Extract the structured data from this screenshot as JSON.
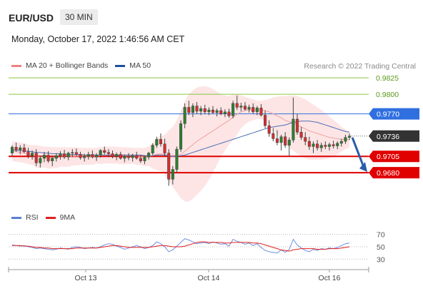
{
  "header": {
    "symbol": "EUR/USD",
    "timeframe": "30 MIN",
    "datetime": "Monday, October 17, 2022 1:46:56 AM CET",
    "credit": "Research © 2022 Trading Central"
  },
  "legend_main": [
    {
      "label": "MA 20 + Bollinger Bands",
      "color": "#f08080"
    },
    {
      "label": "MA 50",
      "color": "#1f4e9c"
    }
  ],
  "legend_rsi": [
    {
      "label": "RSI",
      "color": "#5b7fd6"
    },
    {
      "label": "9MA",
      "color": "#e02020"
    }
  ],
  "chart_data": {
    "type": "candlestick",
    "x_tick_labels": [
      "Oct 13",
      "Oct 14",
      "Oct 16"
    ],
    "price_range": [
      0.963,
      0.9835
    ],
    "levels": [
      {
        "value": 0.9825,
        "label": "0.9825",
        "color": "#8cc63f",
        "kind": "resistance"
      },
      {
        "value": 0.98,
        "label": "0.9800",
        "color": "#8cc63f",
        "kind": "resistance"
      },
      {
        "value": 0.977,
        "label": "0.9770",
        "color": "#2f6fe0",
        "kind": "pivot"
      },
      {
        "value": 0.9705,
        "label": "0.9705",
        "color": "#e00000",
        "kind": "support"
      },
      {
        "value": 0.968,
        "label": "0.9680",
        "color": "#e00000",
        "kind": "support"
      }
    ],
    "last_price": {
      "value": 0.9736,
      "label": "0.9736",
      "color": "#333333"
    },
    "projection": {
      "from": 0.9736,
      "to": 0.968
    },
    "candles": [
      [
        0.971,
        0.9722,
        0.9705,
        0.9719
      ],
      [
        0.9719,
        0.9726,
        0.9712,
        0.9715
      ],
      [
        0.9715,
        0.9722,
        0.9708,
        0.9718
      ],
      [
        0.9718,
        0.9724,
        0.971,
        0.9712
      ],
      [
        0.9712,
        0.9718,
        0.9702,
        0.9706
      ],
      [
        0.9706,
        0.9714,
        0.97,
        0.971
      ],
      [
        0.971,
        0.9716,
        0.969,
        0.9695
      ],
      [
        0.9695,
        0.9706,
        0.9688,
        0.9702
      ],
      [
        0.9702,
        0.9712,
        0.9696,
        0.9707
      ],
      [
        0.9707,
        0.9713,
        0.9695,
        0.9698
      ],
      [
        0.9698,
        0.9706,
        0.969,
        0.9702
      ],
      [
        0.9702,
        0.971,
        0.9697,
        0.9706
      ],
      [
        0.9706,
        0.9713,
        0.97,
        0.9709
      ],
      [
        0.9709,
        0.9715,
        0.9701,
        0.9704
      ],
      [
        0.9704,
        0.9712,
        0.9699,
        0.971
      ],
      [
        0.971,
        0.9716,
        0.9704,
        0.9711
      ],
      [
        0.9711,
        0.9717,
        0.9705,
        0.9708
      ],
      [
        0.9708,
        0.9712,
        0.97,
        0.9703
      ],
      [
        0.9703,
        0.9709,
        0.9697,
        0.9705
      ],
      [
        0.9705,
        0.9712,
        0.97,
        0.9708
      ],
      [
        0.9708,
        0.9714,
        0.9702,
        0.9704
      ],
      [
        0.9704,
        0.971,
        0.9698,
        0.9707
      ],
      [
        0.9707,
        0.9716,
        0.9703,
        0.9714
      ],
      [
        0.9714,
        0.972,
        0.9708,
        0.9711
      ],
      [
        0.9711,
        0.9716,
        0.9704,
        0.9709
      ],
      [
        0.9709,
        0.9714,
        0.9702,
        0.9705
      ],
      [
        0.9705,
        0.9711,
        0.9699,
        0.9708
      ],
      [
        0.9708,
        0.9712,
        0.97,
        0.9702
      ],
      [
        0.9702,
        0.9708,
        0.9696,
        0.9705
      ],
      [
        0.9705,
        0.971,
        0.9699,
        0.9703
      ],
      [
        0.9703,
        0.9709,
        0.9697,
        0.9706
      ],
      [
        0.9706,
        0.9712,
        0.97,
        0.9702
      ],
      [
        0.9702,
        0.9707,
        0.9695,
        0.9698
      ],
      [
        0.9698,
        0.9706,
        0.9693,
        0.9704
      ],
      [
        0.9704,
        0.9712,
        0.97,
        0.971
      ],
      [
        0.971,
        0.9725,
        0.9707,
        0.9722
      ],
      [
        0.9722,
        0.9735,
        0.9718,
        0.9731
      ],
      [
        0.9731,
        0.974,
        0.972,
        0.9724
      ],
      [
        0.9724,
        0.9732,
        0.9705,
        0.971
      ],
      [
        0.971,
        0.9716,
        0.966,
        0.967
      ],
      [
        0.967,
        0.969,
        0.9662,
        0.9685
      ],
      [
        0.9685,
        0.972,
        0.968,
        0.9716
      ],
      [
        0.9716,
        0.976,
        0.9712,
        0.9755
      ],
      [
        0.9755,
        0.9786,
        0.9748,
        0.978
      ],
      [
        0.978,
        0.979,
        0.9768,
        0.9772
      ],
      [
        0.9772,
        0.9786,
        0.9765,
        0.9782
      ],
      [
        0.9782,
        0.9788,
        0.977,
        0.9774
      ],
      [
        0.9774,
        0.9782,
        0.9768,
        0.9778
      ],
      [
        0.9778,
        0.9784,
        0.977,
        0.9773
      ],
      [
        0.9773,
        0.978,
        0.9768,
        0.9776
      ],
      [
        0.9776,
        0.9782,
        0.977,
        0.9772
      ],
      [
        0.9772,
        0.9778,
        0.9766,
        0.9775
      ],
      [
        0.9775,
        0.978,
        0.9768,
        0.977
      ],
      [
        0.977,
        0.9777,
        0.9765,
        0.9773
      ],
      [
        0.9773,
        0.9778,
        0.9764,
        0.9767
      ],
      [
        0.9767,
        0.979,
        0.9763,
        0.9786
      ],
      [
        0.9786,
        0.9798,
        0.9776,
        0.978
      ],
      [
        0.978,
        0.9787,
        0.9774,
        0.9782
      ],
      [
        0.9782,
        0.9788,
        0.9775,
        0.9777
      ],
      [
        0.9777,
        0.9784,
        0.9772,
        0.978
      ],
      [
        0.978,
        0.9786,
        0.977,
        0.9773
      ],
      [
        0.9773,
        0.9782,
        0.9768,
        0.9779
      ],
      [
        0.9779,
        0.9785,
        0.9766,
        0.9768
      ],
      [
        0.9768,
        0.9775,
        0.9748,
        0.9752
      ],
      [
        0.9752,
        0.976,
        0.9735,
        0.974
      ],
      [
        0.974,
        0.9748,
        0.9728,
        0.9732
      ],
      [
        0.9732,
        0.9745,
        0.9722,
        0.9726
      ],
      [
        0.9726,
        0.9738,
        0.9714,
        0.9735
      ],
      [
        0.9735,
        0.9742,
        0.9718,
        0.9722
      ],
      [
        0.9722,
        0.9734,
        0.9706,
        0.973
      ],
      [
        0.973,
        0.9795,
        0.9726,
        0.9762
      ],
      [
        0.9762,
        0.977,
        0.9738,
        0.9742
      ],
      [
        0.9742,
        0.975,
        0.973,
        0.9734
      ],
      [
        0.9734,
        0.9742,
        0.9722,
        0.9728
      ],
      [
        0.9728,
        0.9735,
        0.9715,
        0.972
      ],
      [
        0.972,
        0.9728,
        0.971,
        0.9724
      ],
      [
        0.9724,
        0.973,
        0.9714,
        0.9718
      ],
      [
        0.9718,
        0.9726,
        0.9712,
        0.9722
      ],
      [
        0.9722,
        0.9728,
        0.9716,
        0.972
      ],
      [
        0.972,
        0.9726,
        0.9714,
        0.9723
      ],
      [
        0.9723,
        0.9729,
        0.9717,
        0.9721
      ],
      [
        0.9721,
        0.9728,
        0.9716,
        0.9725
      ],
      [
        0.9725,
        0.9732,
        0.972,
        0.9728
      ],
      [
        0.9728,
        0.9738,
        0.9724,
        0.9734
      ],
      [
        0.9734,
        0.974,
        0.973,
        0.9736
      ]
    ],
    "bollinger": {
      "middle": [
        0.9713,
        0.9712,
        0.9711,
        0.971,
        0.9708,
        0.9707,
        0.9705,
        0.9704,
        0.9704,
        0.9703,
        0.9703,
        0.9703,
        0.9704,
        0.9704,
        0.9704,
        0.9705,
        0.9705,
        0.9705,
        0.9705,
        0.9705,
        0.9705,
        0.9706,
        0.9706,
        0.9707,
        0.9707,
        0.9707,
        0.9707,
        0.9706,
        0.9706,
        0.9706,
        0.9706,
        0.9705,
        0.9705,
        0.9704,
        0.9705,
        0.9706,
        0.9708,
        0.9709,
        0.9708,
        0.9706,
        0.9704,
        0.9705,
        0.9708,
        0.9713,
        0.9718,
        0.9723,
        0.9728,
        0.9732,
        0.9736,
        0.974,
        0.9744,
        0.9748,
        0.9752,
        0.9756,
        0.976,
        0.9765,
        0.9769,
        0.9773,
        0.9775,
        0.9776,
        0.9776,
        0.9776,
        0.9776,
        0.9775,
        0.9773,
        0.977,
        0.9767,
        0.9764,
        0.976,
        0.9758,
        0.9756,
        0.9753,
        0.975,
        0.9747,
        0.9744,
        0.9742,
        0.974,
        0.9738,
        0.9736,
        0.9734,
        0.9733,
        0.9732,
        0.9731,
        0.9731,
        0.9731
      ],
      "upper": [
        0.9728,
        0.9727,
        0.9726,
        0.9725,
        0.9723,
        0.9722,
        0.9722,
        0.9721,
        0.972,
        0.972,
        0.9719,
        0.9719,
        0.9719,
        0.9719,
        0.9719,
        0.9719,
        0.9719,
        0.9718,
        0.9718,
        0.9718,
        0.9718,
        0.9718,
        0.9719,
        0.972,
        0.972,
        0.972,
        0.972,
        0.9719,
        0.9719,
        0.9719,
        0.9718,
        0.9718,
        0.9718,
        0.9718,
        0.972,
        0.9726,
        0.9732,
        0.9736,
        0.9738,
        0.9745,
        0.975,
        0.976,
        0.9775,
        0.979,
        0.98,
        0.9806,
        0.981,
        0.9812,
        0.9812,
        0.9811,
        0.9808,
        0.9804,
        0.98,
        0.9798,
        0.9797,
        0.98,
        0.98,
        0.9798,
        0.9796,
        0.9794,
        0.9792,
        0.979,
        0.979,
        0.9791,
        0.9793,
        0.9795,
        0.9796,
        0.9797,
        0.9797,
        0.9798,
        0.9798,
        0.9797,
        0.9795,
        0.9792,
        0.9788,
        0.9784,
        0.978,
        0.9776,
        0.9771,
        0.9766,
        0.9761,
        0.9756,
        0.975,
        0.9746,
        0.9743
      ],
      "lower": [
        0.9698,
        0.9697,
        0.9696,
        0.9695,
        0.9693,
        0.9692,
        0.9688,
        0.9687,
        0.9688,
        0.9686,
        0.9687,
        0.9687,
        0.9689,
        0.9689,
        0.9689,
        0.9691,
        0.9691,
        0.9692,
        0.9692,
        0.9692,
        0.9692,
        0.9694,
        0.9693,
        0.9694,
        0.9694,
        0.9694,
        0.9694,
        0.9693,
        0.9693,
        0.9693,
        0.9694,
        0.9692,
        0.9692,
        0.969,
        0.969,
        0.9686,
        0.9684,
        0.9682,
        0.9678,
        0.9667,
        0.9658,
        0.965,
        0.9641,
        0.9636,
        0.9636,
        0.964,
        0.9646,
        0.9652,
        0.966,
        0.9669,
        0.968,
        0.9692,
        0.9704,
        0.9714,
        0.9723,
        0.973,
        0.9738,
        0.9748,
        0.9754,
        0.9758,
        0.976,
        0.9762,
        0.9762,
        0.9759,
        0.9753,
        0.9745,
        0.9738,
        0.9731,
        0.9723,
        0.9718,
        0.9714,
        0.9709,
        0.9705,
        0.9702,
        0.97,
        0.97,
        0.97,
        0.97,
        0.9701,
        0.9702,
        0.9705,
        0.9708,
        0.9712,
        0.9716,
        0.9719
      ]
    },
    "ma50": [
      0.9715,
      0.9714,
      0.9714,
      0.9713,
      0.9713,
      0.9712,
      0.9711,
      0.9711,
      0.971,
      0.971,
      0.9709,
      0.9709,
      0.9709,
      0.9708,
      0.9708,
      0.9708,
      0.9708,
      0.9708,
      0.9707,
      0.9707,
      0.9707,
      0.9707,
      0.9707,
      0.9707,
      0.9707,
      0.9707,
      0.9707,
      0.9707,
      0.9707,
      0.9707,
      0.9707,
      0.9707,
      0.9707,
      0.9706,
      0.9706,
      0.9706,
      0.9707,
      0.9707,
      0.9707,
      0.9706,
      0.9705,
      0.9705,
      0.9706,
      0.9707,
      0.9709,
      0.9711,
      0.9713,
      0.9715,
      0.9717,
      0.9719,
      0.9721,
      0.9723,
      0.9725,
      0.9727,
      0.9729,
      0.9731,
      0.9733,
      0.9735,
      0.9737,
      0.9739,
      0.9741,
      0.9743,
      0.9745,
      0.9747,
      0.9749,
      0.975,
      0.9751,
      0.9752,
      0.9753,
      0.9755,
      0.9757,
      0.9758,
      0.9759,
      0.9759,
      0.9759,
      0.9758,
      0.9757,
      0.9755,
      0.9753,
      0.9751,
      0.9749,
      0.9747,
      0.9745,
      0.9743,
      0.9742
    ],
    "rsi": {
      "ticks": [
        70,
        50,
        30
      ],
      "range": [
        20,
        80
      ],
      "rsi": [
        53,
        52,
        51,
        52,
        50,
        49,
        47,
        48,
        47,
        46,
        45,
        46,
        48,
        47,
        46,
        49,
        50,
        49,
        47,
        48,
        49,
        48,
        50,
        53,
        55,
        54,
        51,
        49,
        46,
        48,
        50,
        52,
        50,
        47,
        49,
        52,
        58,
        55,
        50,
        42,
        45,
        51,
        57,
        63,
        61,
        58,
        55,
        56,
        57,
        55,
        58,
        56,
        54,
        55,
        51,
        62,
        59,
        57,
        54,
        56,
        52,
        55,
        49,
        44,
        42,
        41,
        40,
        45,
        41,
        46,
        62,
        53,
        48,
        44,
        42,
        46,
        44,
        47,
        46,
        48,
        47,
        49,
        52,
        55,
        56
      ],
      "ma": [
        52,
        52,
        52,
        51,
        51,
        50,
        49,
        49,
        48,
        48,
        47,
        47,
        47,
        47,
        47,
        47,
        48,
        48,
        48,
        48,
        48,
        48,
        49,
        50,
        51,
        52,
        52,
        51,
        50,
        49,
        49,
        49,
        49,
        49,
        49,
        50,
        51,
        52,
        52,
        51,
        50,
        50,
        50,
        51,
        53,
        55,
        57,
        58,
        58,
        57,
        57,
        57,
        57,
        56,
        56,
        57,
        57,
        57,
        57,
        57,
        56,
        56,
        55,
        53,
        51,
        49,
        47,
        45,
        44,
        43,
        45,
        46,
        47,
        47,
        47,
        47,
        46,
        46,
        46,
        47,
        47,
        47,
        48,
        49,
        50
      ]
    }
  }
}
